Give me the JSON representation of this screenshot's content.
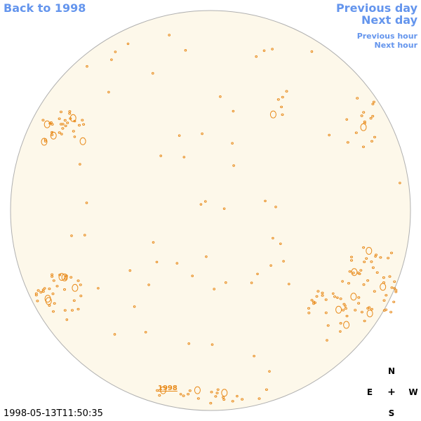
{
  "nav": {
    "back_label": "Back to 1998",
    "previous_day_label": "Previous day",
    "next_day_label": "Next day",
    "previous_hour_label": "Previous hour",
    "next_hour_label": "Next hour"
  },
  "disk": {
    "year_label": "1998",
    "fill_color": "#fdf8ea",
    "limb_color": "#b0b0b0",
    "feature_color": "#e88a1a"
  },
  "timestamp": "1998-05-13T11:50:35",
  "compass": {
    "north": "N",
    "east": "E",
    "center": "+",
    "west": "W",
    "south": "S"
  }
}
